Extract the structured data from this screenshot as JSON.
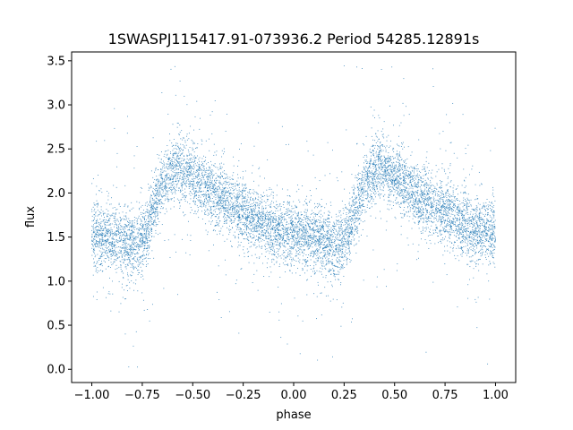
{
  "chart_data": {
    "type": "scatter",
    "title": "1SWASPJ115417.91-073936.2 Period 54285.12891s",
    "xlabel": "phase",
    "ylabel": "flux",
    "xlim": [
      -1.1,
      1.1
    ],
    "ylim": [
      -0.15,
      3.6
    ],
    "grid": false,
    "legend": "none",
    "x_ticks": [
      -1.0,
      -0.75,
      -0.5,
      -0.25,
      0.0,
      0.25,
      0.5,
      0.75,
      1.0
    ],
    "x_tick_labels": [
      "−1.00",
      "−0.75",
      "−0.50",
      "−0.25",
      "0.00",
      "0.25",
      "0.50",
      "0.75",
      "1.00"
    ],
    "y_ticks": [
      0.0,
      0.5,
      1.0,
      1.5,
      2.0,
      2.5,
      3.0,
      3.5
    ],
    "y_tick_labels": [
      "0.0",
      "0.5",
      "1.0",
      "1.5",
      "2.0",
      "2.5",
      "3.0",
      "3.5"
    ],
    "color": "#1f77b4",
    "series": [
      {
        "x_range": [
          -1.0,
          1.0
        ],
        "phase_period": 1.0,
        "curve_phase": [
          0.0,
          0.15,
          0.22,
          0.28,
          0.33,
          0.38,
          0.43,
          0.5,
          0.6,
          0.7,
          0.8,
          0.9,
          1.0
        ],
        "curve_flux": [
          1.55,
          1.45,
          1.38,
          1.6,
          2.0,
          2.2,
          2.3,
          2.2,
          2.0,
          1.85,
          1.7,
          1.58,
          1.55
        ],
        "typical_scatter": 0.18,
        "flux_min": 0.02,
        "flux_max": 3.45,
        "approx_points": 60000
      }
    ]
  }
}
